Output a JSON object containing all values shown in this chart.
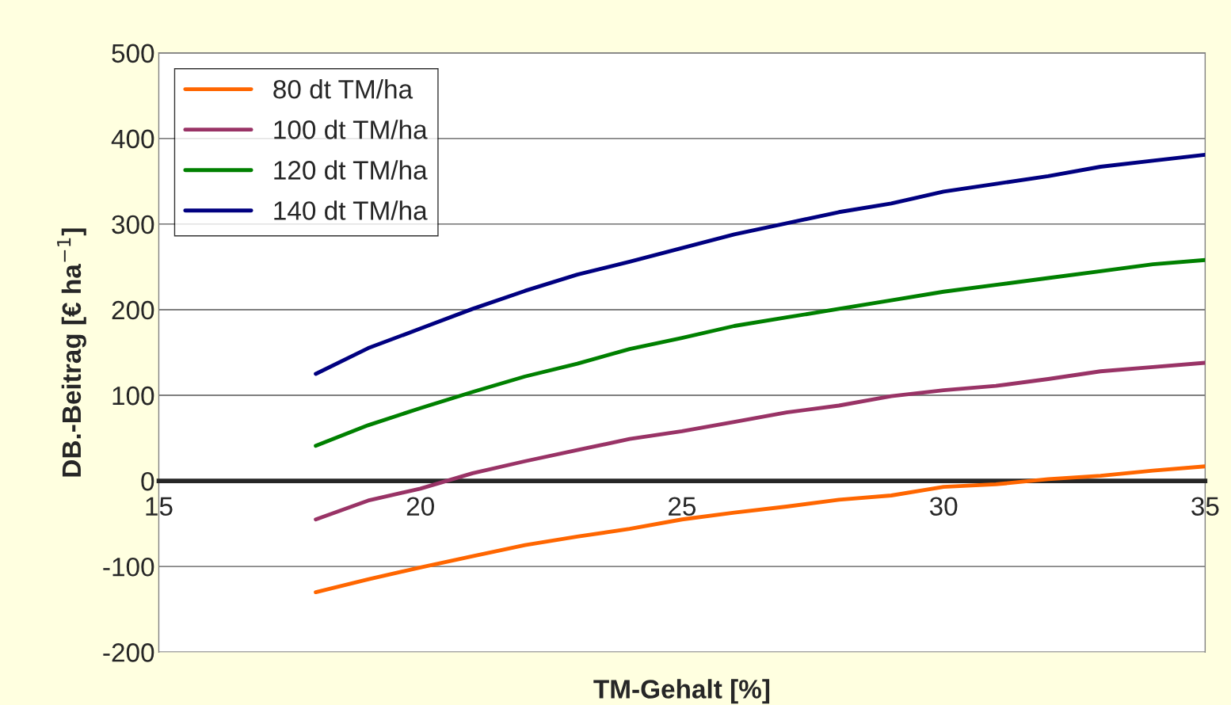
{
  "chart_data": {
    "type": "line",
    "xlabel": "TM-Gehalt [%]",
    "ylabel": "DB.-Beitrag [€ ha$^{−1}$]",
    "x": [
      18,
      19,
      20,
      21,
      22,
      23,
      24,
      25,
      26,
      27,
      28,
      29,
      30,
      31,
      32,
      33,
      34,
      35
    ],
    "series": [
      {
        "name": "80 dt TM/ha",
        "color": "#ff6600",
        "values": [
          -130,
          -115,
          -101,
          -88,
          -75,
          -65,
          -56,
          -45,
          -37,
          -30,
          -22,
          -17,
          -7,
          -4,
          2,
          6,
          12,
          17
        ]
      },
      {
        "name": "100 dt TM/ha",
        "color": "#993366",
        "values": [
          -45,
          -23,
          -9,
          9,
          23,
          36,
          49,
          58,
          69,
          80,
          88,
          99,
          106,
          111,
          119,
          128,
          133,
          138
        ]
      },
      {
        "name": "120 dt TM/ha",
        "color": "#008000",
        "values": [
          41,
          65,
          85,
          104,
          122,
          137,
          154,
          167,
          181,
          191,
          201,
          211,
          221,
          229,
          237,
          245,
          253,
          258
        ]
      },
      {
        "name": "140 dt TM/ha",
        "color": "#000080",
        "values": [
          125,
          155,
          178,
          201,
          222,
          241,
          256,
          272,
          288,
          301,
          314,
          324,
          338,
          347,
          356,
          367,
          374,
          381
        ]
      }
    ],
    "xlim": [
      15,
      35
    ],
    "xticks": [
      15,
      20,
      25,
      30,
      35
    ],
    "ylim": [
      -200,
      500
    ],
    "yticks": [
      -200,
      -100,
      0,
      100,
      200,
      300,
      400,
      500
    ],
    "grid": "y",
    "legend": "top left",
    "marker": "none",
    "line_style": "solid"
  }
}
